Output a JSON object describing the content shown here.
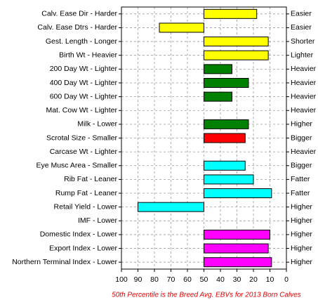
{
  "chart_data": {
    "type": "bar",
    "orientation": "horizontal",
    "categories": [
      "Calv. Ease Dir - Harder",
      "Calv. Ease Dtrs - Harder",
      "Gest. Length - Longer",
      "Birth Wt - Heavier",
      "200 Day Wt - Lighter",
      "400 Day Wt - Lighter",
      "600 Day Wt - Lighter",
      "Mat. Cow Wt - Lighter",
      "Milk - Lower",
      "Scrotal Size - Smaller",
      "Carcase Wt - Lighter",
      "Eye Musc Area - Smaller",
      "Rib Fat - Leaner",
      "Rump Fat - Leaner",
      "Retail Yield - Lower",
      "IMF - Lower",
      "Domestic Index - Lower",
      "Export Index - Lower",
      "Northern Terminal Index - Lower"
    ],
    "right_labels": [
      "Easier",
      "Easier",
      "Shorter",
      "Lighter",
      "Heavier",
      "Heavier",
      "Heavier",
      "Heavier",
      "Higher",
      "Bigger",
      "Heavier",
      "Bigger",
      "Fatter",
      "Fatter",
      "Higher",
      "Higher",
      "Higher",
      "Higher",
      "Higher"
    ],
    "values": [
      18,
      77,
      11,
      11,
      33,
      23,
      33,
      null,
      23,
      25,
      null,
      25,
      20,
      9,
      90,
      null,
      10,
      11,
      9
    ],
    "colors": [
      "#ffff00",
      "#ffff00",
      "#ffff00",
      "#ffff00",
      "#008000",
      "#008000",
      "#008000",
      null,
      "#008000",
      "#ff0000",
      null,
      "#00ffff",
      "#00ffff",
      "#00ffff",
      "#00ffff",
      null,
      "#ff00ff",
      "#ff00ff",
      "#ff00ff"
    ],
    "xlim": [
      100,
      0
    ],
    "xticks": [
      100,
      90,
      80,
      70,
      60,
      50,
      40,
      30,
      20,
      10,
      0
    ],
    "grid": true,
    "footnote": "50th Percentile is the Breed Avg. EBVs for 2013 Born Calves"
  }
}
